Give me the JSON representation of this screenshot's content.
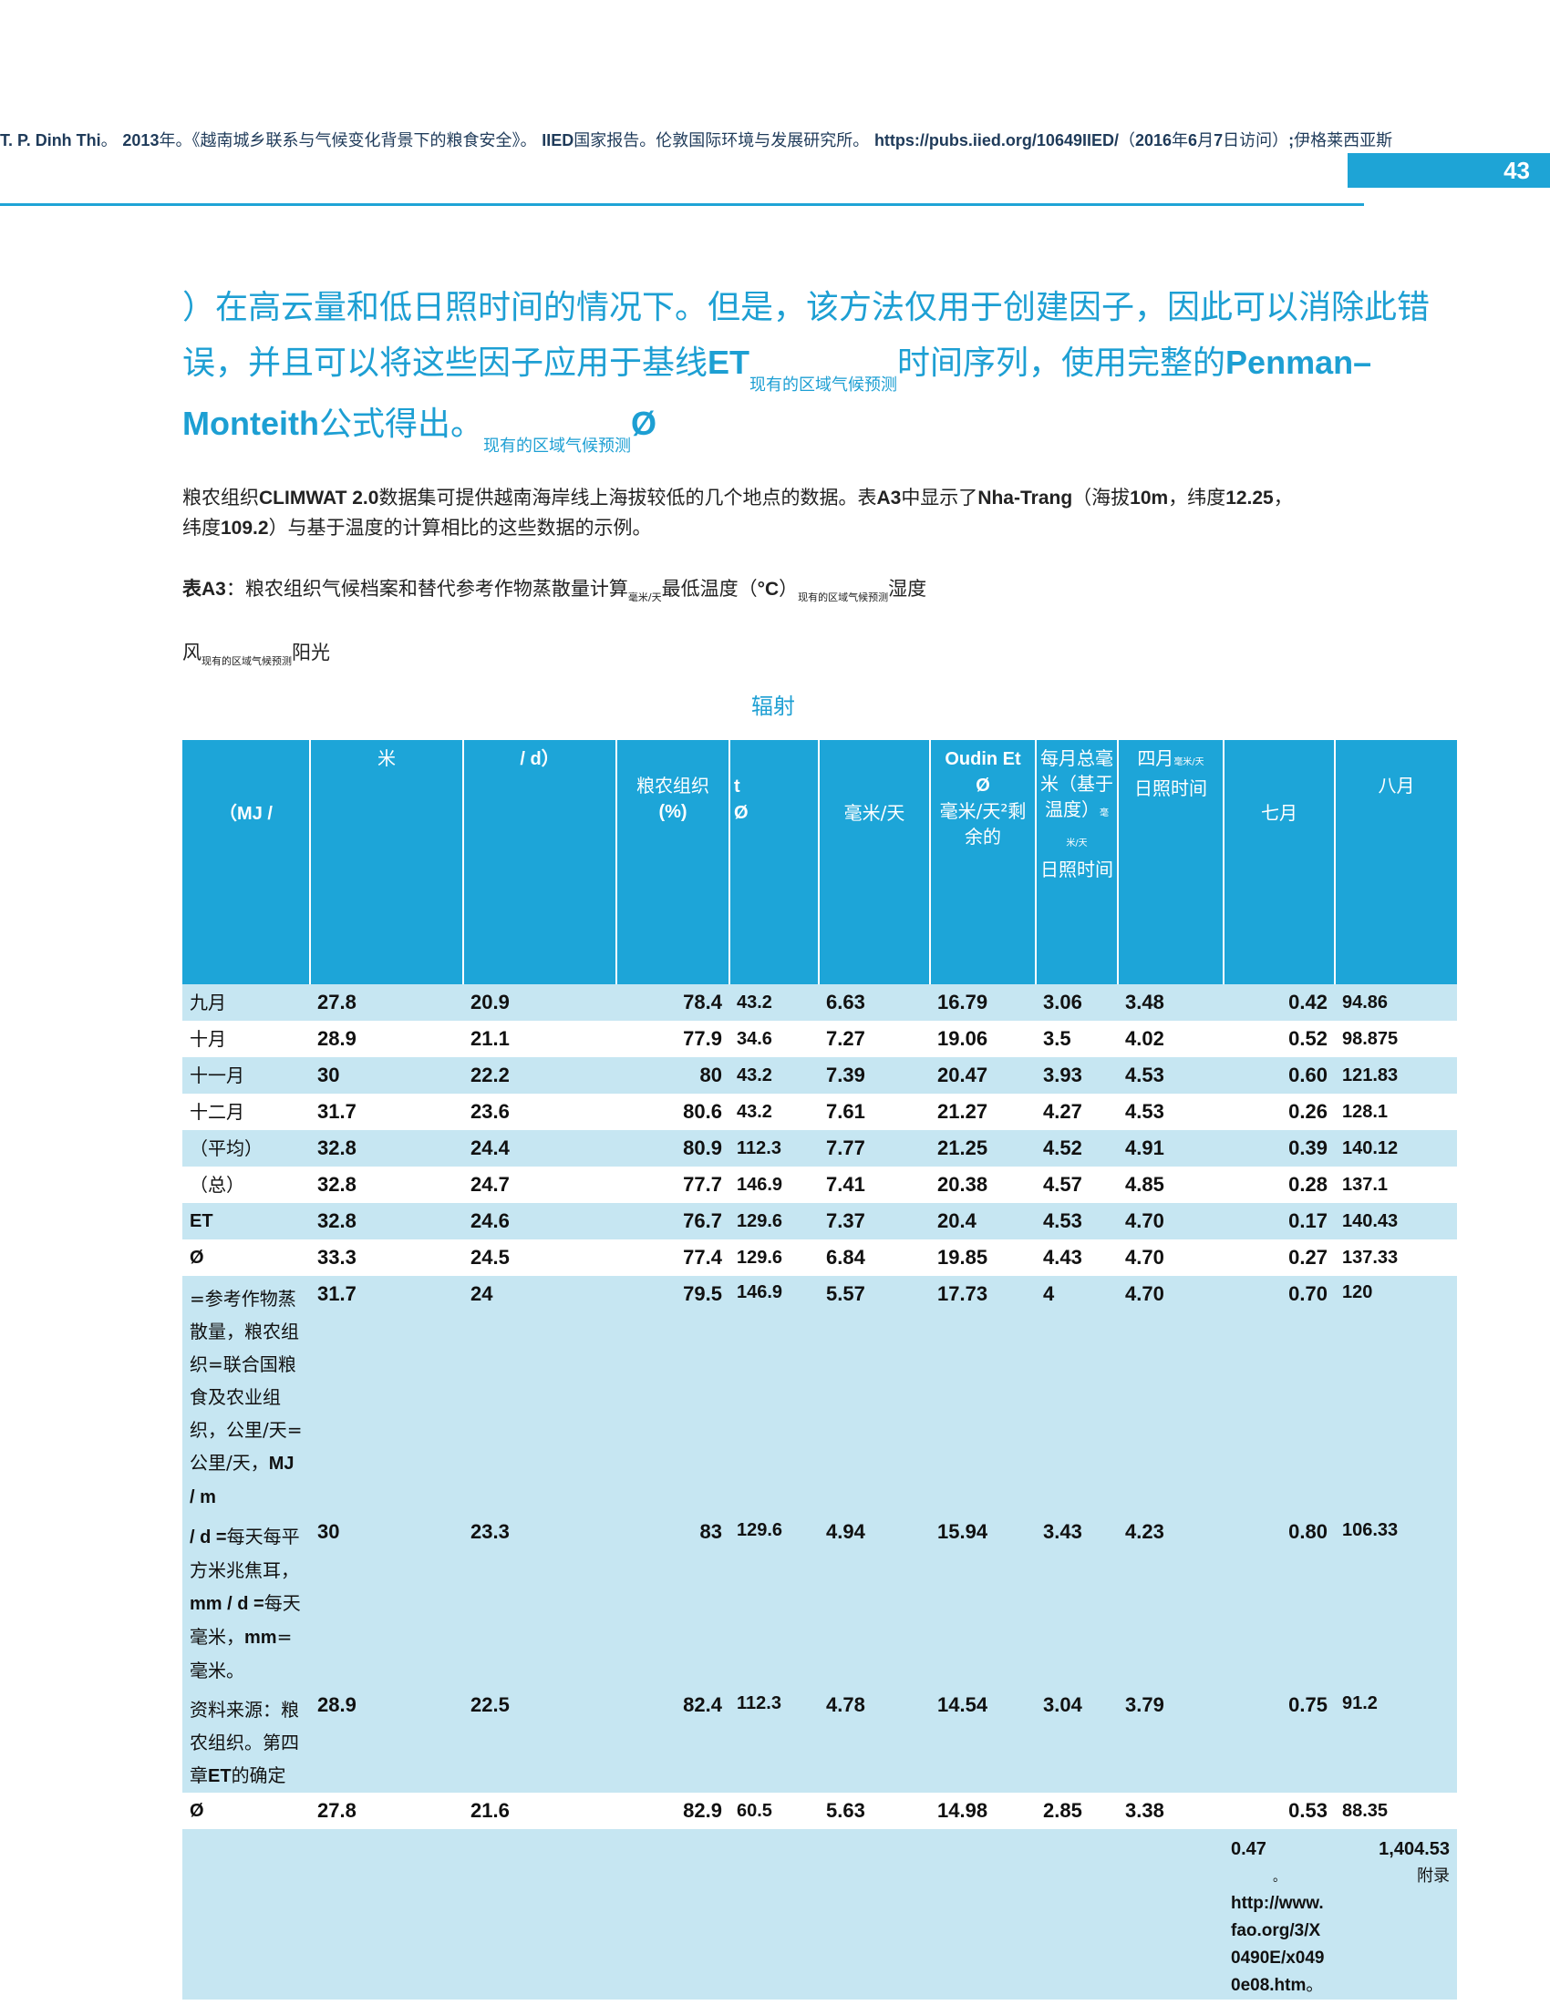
{
  "header": {
    "reference_bold_author": "T. P. Dinh Thi",
    "reference_a": "。",
    "reference_bold_year": "2013",
    "reference_b": "年。《越南城乡联系与气候变化背景下的粮食安全》。",
    "reference_bold_iied": "IIED",
    "reference_c": "国家报告。伦敦国际环境与发展研究所。",
    "reference_bold_url": "https://pubs.iied.org/10649IIED/",
    "reference_d": "（",
    "reference_bold_y2": "2016",
    "reference_e": "年",
    "reference_bold_m": "6",
    "reference_f": "月",
    "reference_bold_d": "7",
    "reference_g": "日访问）",
    "reference_bold_semi": ";",
    "reference_h": "伊格莱西亚斯",
    "page_number": "43"
  },
  "intro": {
    "line1": "）在高云量和低日照时间的情况下。但是，该方法仅用于创建因子，因此可以消除此错",
    "line2_a": "误，并且可以将这些因子应用于基线",
    "line2_bold_et": "ET",
    "line2_sub": "现有的区域气候预测",
    "line2_b": "时间序列，使用完整的",
    "line2_bold_pm": "Penman–",
    "line3_bold_m": "Monteith",
    "line3_a": "公式得出。",
    "line3_sub": "现有的区域气候预测",
    "line3_bold_o": "Ø"
  },
  "paragraph": {
    "p1a": "粮农组织",
    "p1_bold_climwat": "CLIMWAT 2.0",
    "p1b": "数据集可提供越南海岸线上海拔较低的几个地点的数据。表",
    "p1_bold_a3": "A3",
    "p1c": "中显示了",
    "p1_bold_nha": "Nha-Trang",
    "p1d": "（海拔",
    "p1_bold_10m": "10m",
    "p1e": "，纬度",
    "p1_bold_lat": "12.25",
    "p1f": "，",
    "p2a": "纬度",
    "p2_bold_lon": "109.2",
    "p2b": "）与基于温度的计算相比的这些数据的示例。"
  },
  "table_title": {
    "bold_a3": "表A3",
    "a": "：粮农组织气候档案和替代参考作物蒸散量计算",
    "sub1": "毫米/天",
    "b": "最低温度（",
    "bold_c": "°C",
    "c": "）",
    "sub2": "现有的区域气候预测",
    "d": "湿度",
    "wind_a": "风",
    "wind_sub": "现有的区域气候预测",
    "wind_b": "阳光"
  },
  "caption": "辐射",
  "columns": {
    "c0_bold": "（MJ /",
    "c1": "米",
    "c2_bold": "/ d）",
    "c3_a": "粮农组织",
    "c3_bold": "(%)",
    "c4_bold_t": "t",
    "c4_bold_o": "Ø",
    "c5": "毫米/天",
    "c6_bold_oudin": "Oudin Et",
    "c6_bold_o": "Ø",
    "c6_b": "毫米/天²剩余的",
    "c7_a": "每月总毫米（基于温度）",
    "c7_sub": "毫",
    "c7_sub2": "米/天",
    "c7_b": "日照时间",
    "c8_a": "四月",
    "c8_sub": "毫米/天",
    "c8_b": "日照时间",
    "c9": "七月",
    "c10": "八月"
  },
  "rows": [
    {
      "label": "九月",
      "v": [
        "27.8",
        "20.9",
        "78.4",
        "43.2",
        "6.63",
        "16.79",
        "3.06",
        "3.48",
        "0.42",
        "94.86"
      ]
    },
    {
      "label": "十月",
      "v": [
        "28.9",
        "21.1",
        "77.9",
        "34.6",
        "7.27",
        "19.06",
        "3.5",
        "4.02",
        "0.52",
        "98.875"
      ]
    },
    {
      "label": "十一月",
      "v": [
        "30",
        "22.2",
        "80",
        "43.2",
        "7.39",
        "20.47",
        "3.93",
        "4.53",
        "0.60",
        "121.83"
      ]
    },
    {
      "label": "十二月",
      "v": [
        "31.7",
        "23.6",
        "80.6",
        "43.2",
        "7.61",
        "21.27",
        "4.27",
        "4.53",
        "0.26",
        "128.1"
      ]
    },
    {
      "label": "（平均）",
      "v": [
        "32.8",
        "24.4",
        "80.9",
        "112.3",
        "7.77",
        "21.25",
        "4.52",
        "4.91",
        "0.39",
        "140.12"
      ]
    },
    {
      "label": "（总）",
      "v": [
        "32.8",
        "24.7",
        "77.7",
        "146.9",
        "7.41",
        "20.38",
        "4.57",
        "4.85",
        "0.28",
        "137.1"
      ]
    },
    {
      "label": "ET",
      "v": [
        "32.8",
        "24.6",
        "76.7",
        "129.6",
        "7.37",
        "20.4",
        "4.53",
        "4.70",
        "0.17",
        "140.43"
      ]
    },
    {
      "label": "Ø",
      "v": [
        "33.3",
        "24.5",
        "77.4",
        "129.6",
        "6.84",
        "19.85",
        "4.43",
        "4.70",
        "0.27",
        "137.33"
      ]
    },
    {
      "label_parts": [
        "=参考作物蒸散量，粮农组织=联合国粮食及农业组织，公里/天=公里/天，",
        "MJ / m"
      ],
      "v": [
        "31.7",
        "24",
        "79.5",
        "146.9",
        "5.57",
        "17.73",
        "4",
        "4.70",
        "0.70",
        "120"
      ]
    },
    {
      "label_parts": [
        "/ d =",
        "每天每平方米兆焦耳，",
        "mm / d =",
        "每天毫米，",
        "mm",
        "=毫米。"
      ],
      "v": [
        "30",
        "23.3",
        "83",
        "129.6",
        "4.94",
        "15.94",
        "3.43",
        "4.23",
        "0.80",
        "106.33"
      ]
    },
    {
      "label_parts": [
        "资料来源：粮农组织。第四章",
        "ET",
        "的确定"
      ],
      "v": [
        "28.9",
        "22.5",
        "82.4",
        "112.3",
        "4.78",
        "14.54",
        "3.04",
        "3.79",
        "0.75",
        "91.2"
      ]
    },
    {
      "label": "Ø",
      "v": [
        "27.8",
        "21.6",
        "82.9",
        "60.5",
        "5.63",
        "14.98",
        "2.85",
        "3.38",
        "0.53",
        "88.35"
      ]
    }
  ],
  "total_row": {
    "c9_bold": "0.47",
    "c9_dot": "。",
    "c9_url": "http://www.fao.org/3/X0490E/x0490e08.htm",
    "c9_end": "。",
    "c10_bold": "1,404.53",
    "c10_note": "附录"
  }
}
